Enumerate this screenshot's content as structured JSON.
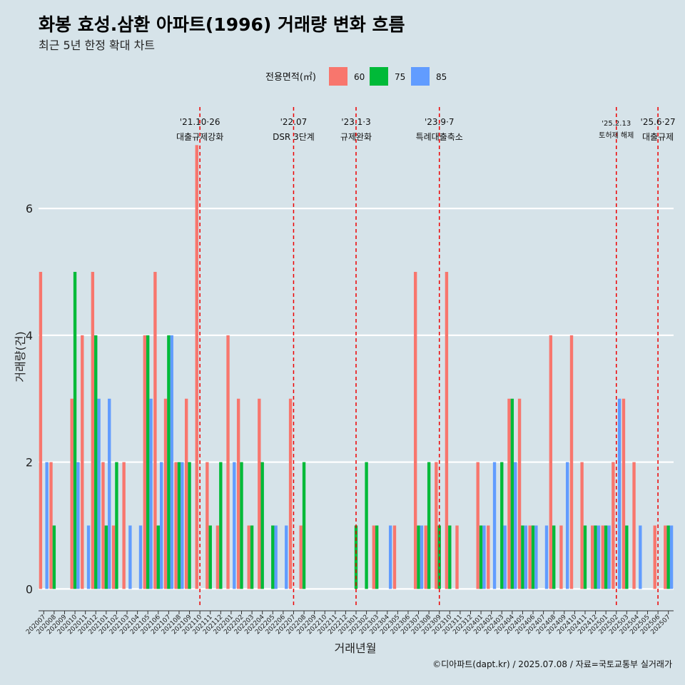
{
  "chart_data": {
    "type": "bar",
    "title": "화봉 효성.삼환 아파트(1996) 거래량 변화 흐름",
    "subtitle": "최근 5년 한정 확대 차트",
    "xlabel": "거래년월",
    "ylabel": "거래량(건)",
    "ylim": [
      -0.3,
      7.6
    ],
    "yticks": [
      0,
      2,
      4,
      6
    ],
    "grid": "horizontal",
    "legend": {
      "title": "전용면적(㎡)",
      "position": "top"
    },
    "categories": [
      "202007",
      "202008",
      "202009",
      "202010",
      "202011",
      "202012",
      "202101",
      "202102",
      "202103",
      "202104",
      "202105",
      "202106",
      "202107",
      "202108",
      "202109",
      "202110",
      "202111",
      "202112",
      "202201",
      "202202",
      "202203",
      "202204",
      "202205",
      "202206",
      "202207",
      "202208",
      "202209",
      "202210",
      "202211",
      "202212",
      "202301",
      "202302",
      "202303",
      "202304",
      "202305",
      "202306",
      "202307",
      "202308",
      "202309",
      "202310",
      "202311",
      "202312",
      "202401",
      "202402",
      "202403",
      "202404",
      "202405",
      "202406",
      "202407",
      "202408",
      "202409",
      "202410",
      "202411",
      "202412",
      "202501",
      "202502",
      "202503",
      "202504",
      "202505",
      "202506",
      "202507"
    ],
    "series": [
      {
        "name": "60",
        "color": "#f8766d",
        "values": [
          5,
          2,
          0,
          3,
          4,
          5,
          2,
          1,
          2,
          0,
          4,
          5,
          3,
          2,
          3,
          7,
          2,
          1,
          4,
          3,
          1,
          3,
          0,
          0,
          3,
          1,
          0,
          0,
          0,
          0,
          0,
          0,
          1,
          0,
          1,
          0,
          5,
          1,
          2,
          5,
          1,
          0,
          2,
          1,
          0,
          3,
          3,
          1,
          0,
          4,
          1,
          4,
          2,
          1,
          1,
          2,
          3,
          2,
          0,
          1,
          1
        ]
      },
      {
        "name": "75",
        "color": "#00ba38",
        "values": [
          0,
          1,
          0,
          5,
          0,
          4,
          1,
          2,
          0,
          0,
          4,
          1,
          4,
          2,
          2,
          0,
          1,
          2,
          0,
          2,
          1,
          2,
          1,
          0,
          0,
          2,
          0,
          0,
          0,
          0,
          1,
          2,
          1,
          0,
          0,
          0,
          1,
          2,
          1,
          1,
          0,
          0,
          1,
          0,
          2,
          3,
          1,
          1,
          0,
          1,
          0,
          0,
          1,
          1,
          1,
          0,
          1,
          0,
          0,
          0,
          1
        ]
      },
      {
        "name": "85",
        "color": "#619cff",
        "values": [
          2,
          0,
          0,
          2,
          1,
          3,
          3,
          0,
          1,
          1,
          3,
          2,
          4,
          2,
          0,
          0,
          0,
          0,
          2,
          0,
          0,
          0,
          1,
          1,
          0,
          0,
          0,
          0,
          0,
          0,
          0,
          0,
          0,
          1,
          0,
          0,
          1,
          0,
          0,
          0,
          0,
          0,
          1,
          2,
          1,
          2,
          1,
          1,
          1,
          0,
          2,
          0,
          0,
          1,
          1,
          3,
          0,
          1,
          0,
          0,
          1
        ]
      }
    ],
    "events": [
      {
        "date": "'21.10·26",
        "label": "대출규제강화",
        "category": "202110"
      },
      {
        "date": "'22.07",
        "label": "DSR 3단계",
        "category": "202207"
      },
      {
        "date": "'23.1·3",
        "label": "규제완화",
        "category": "202301"
      },
      {
        "date": "'23.9·7",
        "label": "특례대출축소",
        "category": "202309"
      },
      {
        "date": "'25.2.13",
        "label": "토허제 해제",
        "category": "202502"
      },
      {
        "date": "'25.6·27",
        "label": "대출규제",
        "category": "202506"
      }
    ],
    "colors": {
      "background": "#d6e3e9",
      "grid": "#ffffff",
      "event_line": "#ee0000"
    }
  },
  "caption": "©디아파트(dapt.kr) / 2025.07.08 / 자료=국토교통부 실거래가"
}
